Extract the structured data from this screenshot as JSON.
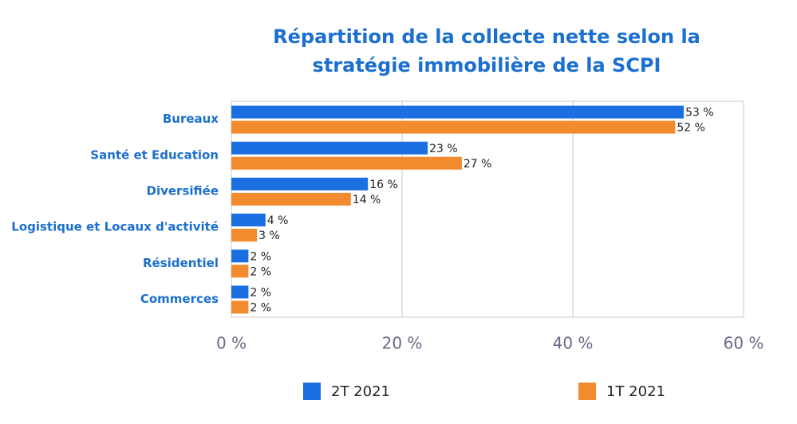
{
  "chart_data": {
    "type": "barh",
    "title": "Répartition de la collecte nette selon la stratégie immobilière de la SCPI",
    "categories": [
      "Bureaux",
      "Santé et Education",
      "Diversifiée",
      "Logistique et Locaux d'activité",
      "Résidentiel",
      "Commerces"
    ],
    "series": [
      {
        "name": "2T 2021",
        "color": "#1b6fe0",
        "values": [
          53,
          23,
          16,
          4,
          2,
          2
        ],
        "value_labels": [
          "53 %",
          "23 %",
          "16 %",
          "4 %",
          "2 %",
          "2 %"
        ]
      },
      {
        "name": "1T 2021",
        "color": "#f28a2e",
        "values": [
          52,
          27,
          14,
          3,
          2,
          2
        ],
        "value_labels": [
          "52 %",
          "27 %",
          "14 %",
          "3 %",
          "2 %",
          "2 %"
        ]
      }
    ],
    "xlim": [
      0,
      60
    ],
    "xticks": [
      {
        "value": 0,
        "label": "0 %"
      },
      {
        "value": 20,
        "label": "20 %"
      },
      {
        "value": 40,
        "label": "40 %"
      },
      {
        "value": 60,
        "label": "60 %"
      }
    ],
    "grid": true,
    "legend": "bottom"
  }
}
